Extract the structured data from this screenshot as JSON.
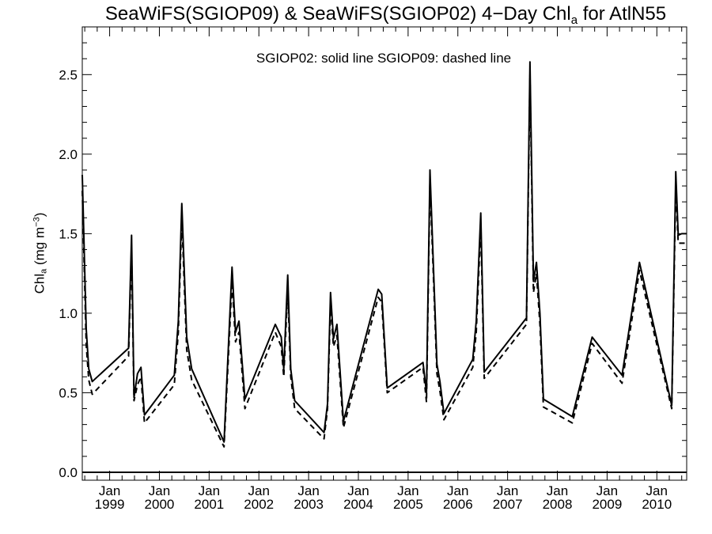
{
  "chart_data": {
    "type": "line",
    "title_main": "SeaWiFS(SGIOP09) & SeaWiFS(SGIOP02) 4−Day Chl",
    "title_sub": "a",
    "title_tail": " for AtlN55",
    "ylabel_main": "Chl",
    "ylabel_sub": "a",
    "ylabel_unit": " (mg m",
    "ylabel_sup": "−3",
    "ylabel_close": ")",
    "legend_text": "SGIOP02: solid line   SGIOP09: dashed line",
    "ylim": [
      -0.05,
      2.8
    ],
    "xlim": [
      1998.45,
      2010.6
    ],
    "y_ticks": [
      "0.0",
      "0.5",
      "1.0",
      "1.5",
      "2.0",
      "2.5"
    ],
    "x_month_label": "Jan",
    "x_years": [
      "1999",
      "2000",
      "2001",
      "2002",
      "2003",
      "2004",
      "2005",
      "2006",
      "2007",
      "2008",
      "2009",
      "2010"
    ],
    "grid": false,
    "zero_line": true,
    "series": [
      {
        "name": "SGIOP02",
        "style": "solid",
        "x": [
          1998.45,
          1998.53,
          1998.58,
          1998.65,
          1999.38,
          1999.44,
          1999.49,
          1999.56,
          1999.63,
          1999.7,
          2000.3,
          2000.38,
          2000.45,
          2000.55,
          2000.65,
          2001.3,
          2001.46,
          2001.53,
          2001.6,
          2001.72,
          2002.33,
          2002.45,
          2002.5,
          2002.58,
          2002.64,
          2002.72,
          2003.31,
          2003.38,
          2003.44,
          2003.5,
          2003.57,
          2003.7,
          2004.4,
          2004.47,
          2004.58,
          2005.3,
          2005.37,
          2005.44,
          2005.58,
          2005.64,
          2005.72,
          2006.3,
          2006.37,
          2006.46,
          2006.53,
          2007.38,
          2007.45,
          2007.52,
          2007.58,
          2007.65,
          2007.72,
          2008.3,
          2008.7,
          2009.3,
          2009.65,
          2010.3,
          2010.38,
          2010.43,
          2010.5,
          2010.6
        ],
        "y": [
          1.87,
          0.9,
          0.65,
          0.57,
          0.78,
          1.49,
          0.47,
          0.62,
          0.66,
          0.36,
          0.61,
          0.95,
          1.69,
          0.85,
          0.65,
          0.19,
          1.29,
          0.88,
          0.95,
          0.46,
          0.93,
          0.85,
          0.65,
          1.24,
          0.65,
          0.45,
          0.25,
          0.43,
          1.13,
          0.84,
          0.93,
          0.32,
          1.15,
          1.12,
          0.53,
          0.69,
          0.5,
          1.9,
          0.68,
          0.57,
          0.37,
          0.71,
          0.95,
          1.63,
          0.63,
          0.97,
          2.58,
          1.2,
          1.32,
          1.0,
          0.46,
          0.35,
          0.85,
          0.61,
          1.32,
          0.42,
          1.89,
          1.49,
          1.5,
          1.5
        ]
      },
      {
        "name": "SGIOP09",
        "style": "dashed",
        "x": [
          1998.45,
          1998.53,
          1998.58,
          1998.65,
          1999.38,
          1999.44,
          1999.49,
          1999.56,
          1999.63,
          1999.7,
          2000.3,
          2000.38,
          2000.45,
          2000.55,
          2000.65,
          2001.3,
          2001.46,
          2001.53,
          2001.6,
          2001.72,
          2002.33,
          2002.45,
          2002.5,
          2002.58,
          2002.64,
          2002.72,
          2003.31,
          2003.38,
          2003.44,
          2003.5,
          2003.57,
          2003.7,
          2004.4,
          2004.47,
          2004.58,
          2005.3,
          2005.37,
          2005.44,
          2005.58,
          2005.64,
          2005.72,
          2006.3,
          2006.37,
          2006.46,
          2006.53,
          2007.38,
          2007.45,
          2007.52,
          2007.58,
          2007.65,
          2007.72,
          2008.3,
          2008.7,
          2009.3,
          2009.65,
          2010.3,
          2010.38,
          2010.43,
          2010.5,
          2010.6
        ],
        "y": [
          1.77,
          0.8,
          0.58,
          0.49,
          0.73,
          1.4,
          0.45,
          0.55,
          0.6,
          0.31,
          0.55,
          0.88,
          1.6,
          0.77,
          0.58,
          0.16,
          1.2,
          0.82,
          0.88,
          0.4,
          0.88,
          0.79,
          0.6,
          1.15,
          0.6,
          0.4,
          0.21,
          0.4,
          1.06,
          0.79,
          0.86,
          0.28,
          1.1,
          1.07,
          0.5,
          0.66,
          0.44,
          1.83,
          0.62,
          0.51,
          0.33,
          0.66,
          0.88,
          1.55,
          0.59,
          0.93,
          2.5,
          1.13,
          1.25,
          0.93,
          0.41,
          0.31,
          0.81,
          0.56,
          1.27,
          0.4,
          1.8,
          1.44,
          1.44,
          1.44
        ]
      }
    ]
  }
}
